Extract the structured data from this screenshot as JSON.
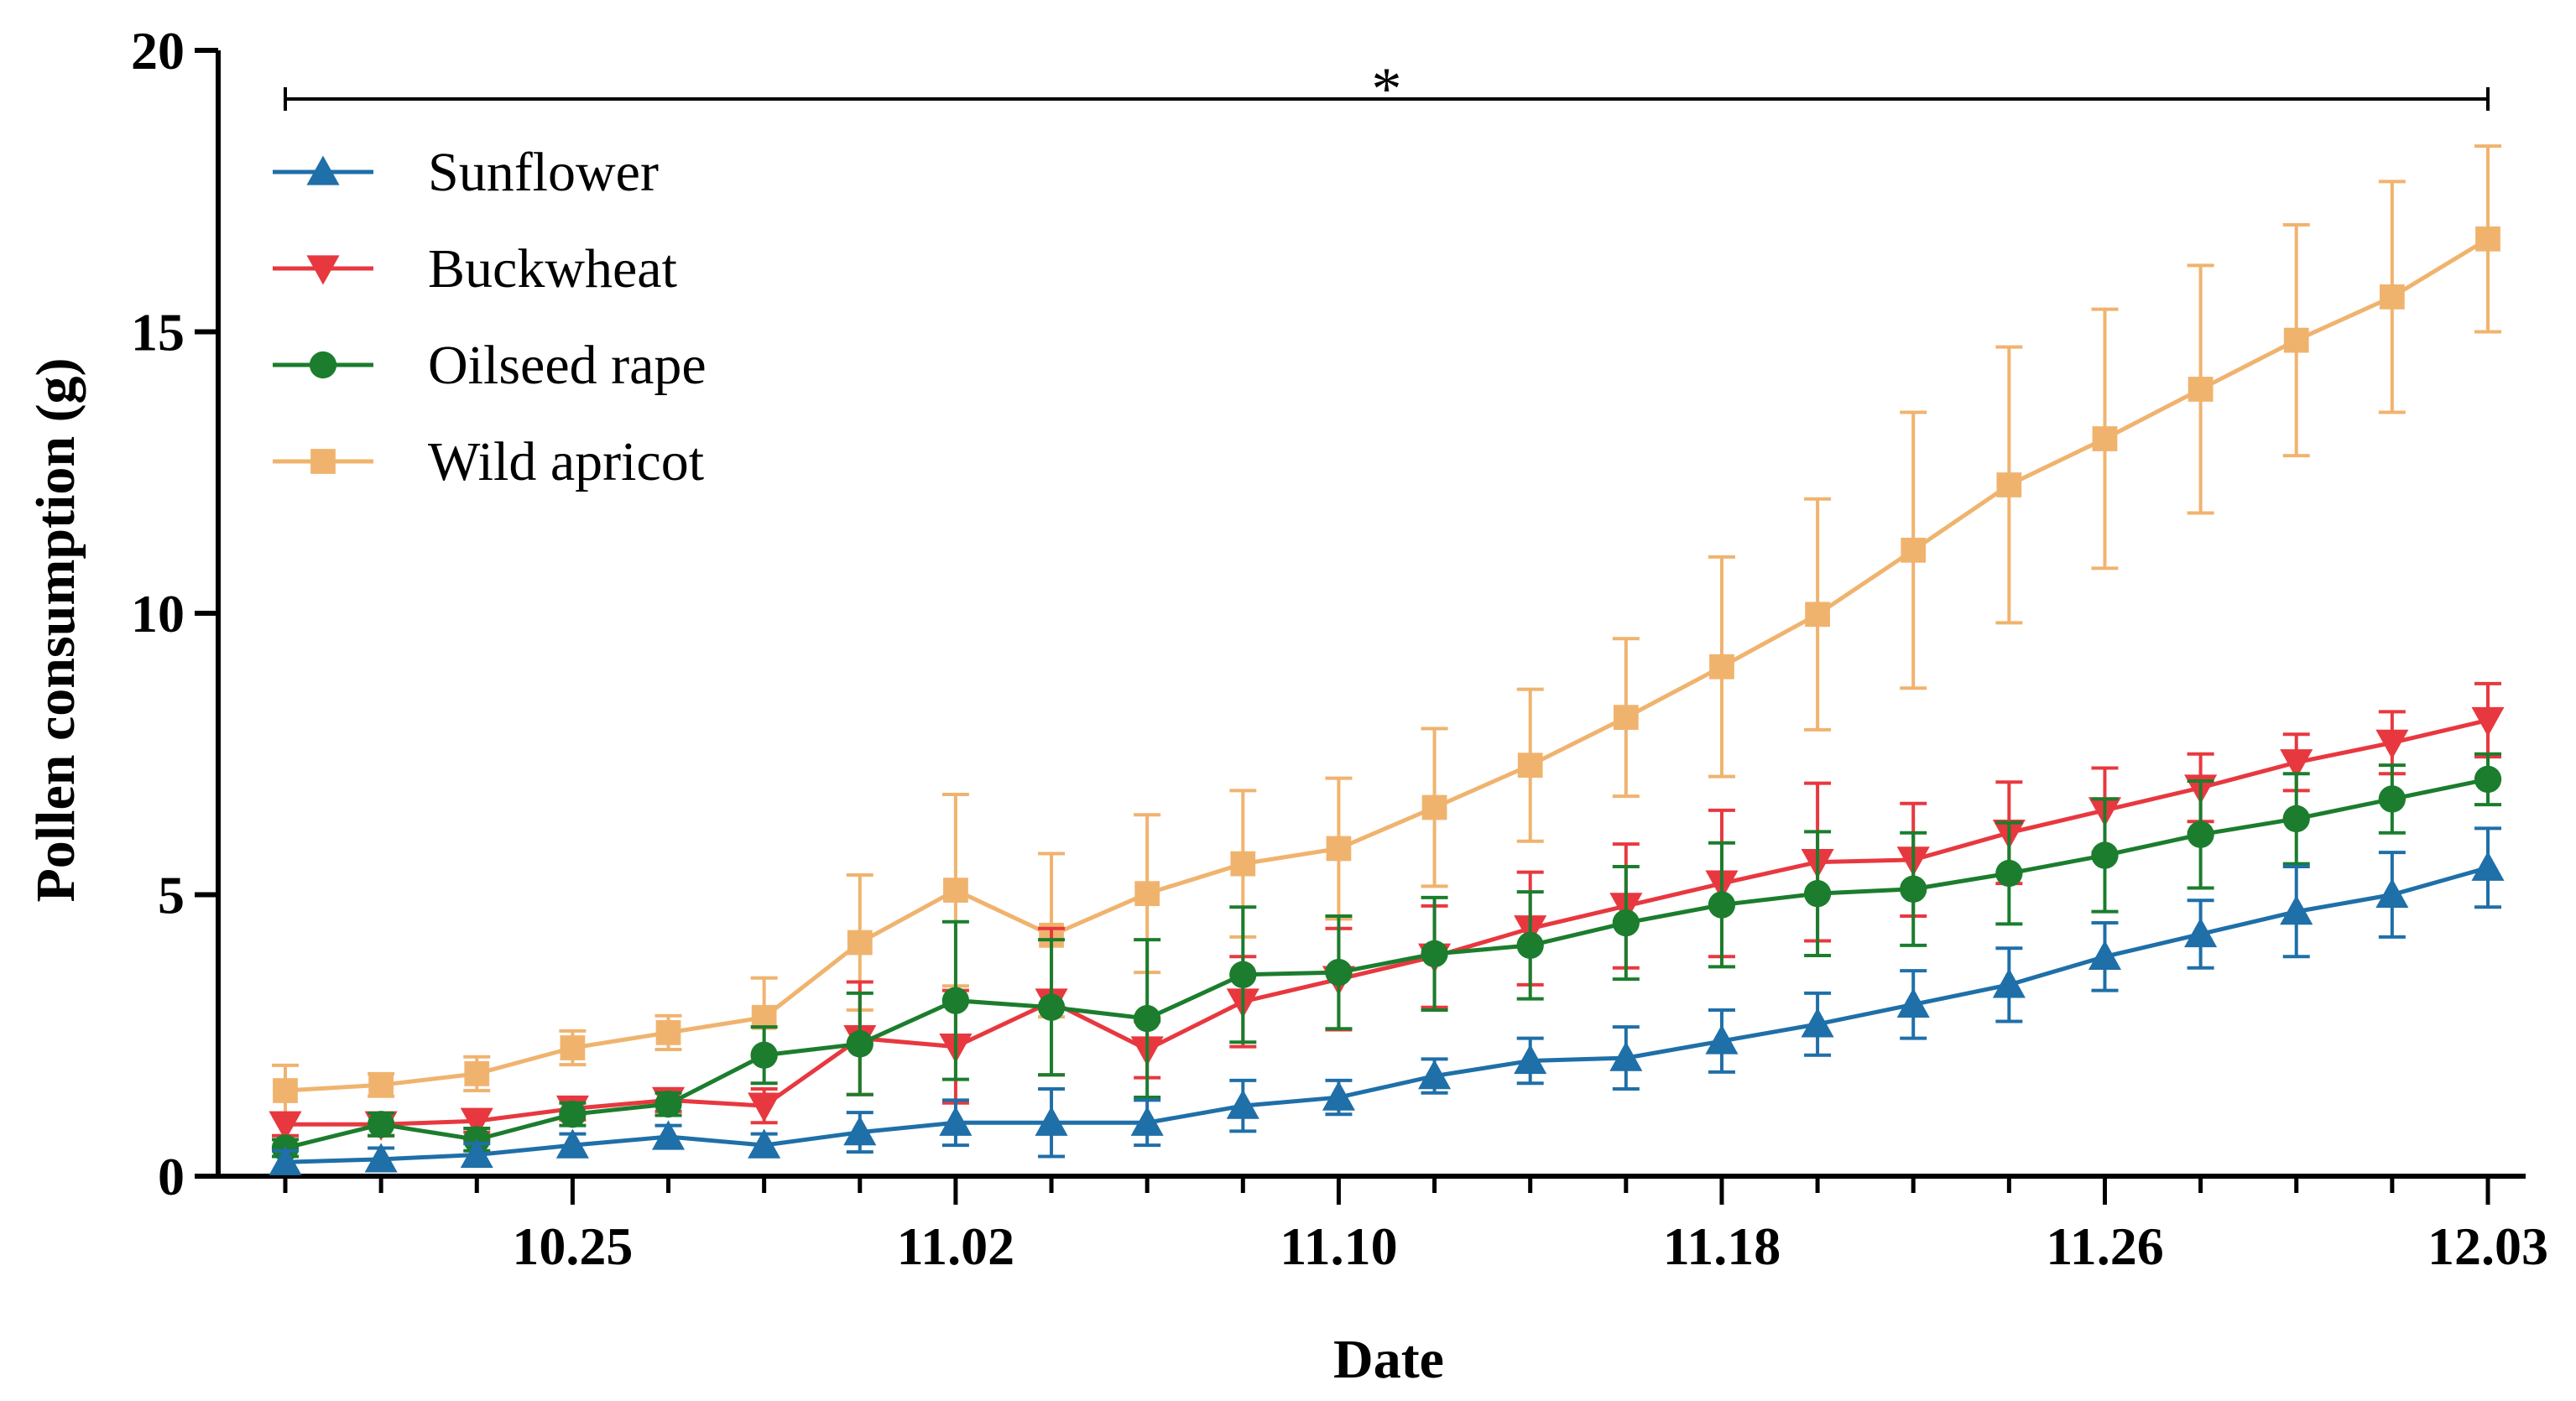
{
  "chart_data": {
    "type": "line",
    "title": "",
    "xlabel": "Date",
    "ylabel": "Pollen consumption (g)",
    "ylim": [
      0,
      20
    ],
    "yticks": [
      "0",
      "5",
      "10",
      "15",
      "20"
    ],
    "x_tick_labels": [
      "10.25",
      "11.02",
      "11.10",
      "11.18",
      "11.26",
      "12.03"
    ],
    "x_tick_indices": [
      3,
      7,
      11,
      15,
      19,
      23
    ],
    "n_points": 24,
    "significance_marker": "*",
    "grid": false,
    "legend_position": "top-left",
    "series": [
      {
        "name": "Sunflower",
        "color": "#1f6fa8",
        "marker": "triangle-up",
        "values": [
          0.25,
          0.3,
          0.38,
          0.55,
          0.7,
          0.55,
          0.78,
          0.95,
          0.95,
          0.95,
          1.25,
          1.4,
          1.78,
          2.05,
          2.1,
          2.4,
          2.7,
          3.05,
          3.4,
          3.9,
          4.3,
          4.7,
          5.0,
          5.48
        ],
        "errors": [
          0.2,
          0.2,
          0.2,
          0.2,
          0.2,
          0.2,
          0.35,
          0.4,
          0.6,
          0.4,
          0.45,
          0.3,
          0.3,
          0.4,
          0.55,
          0.55,
          0.55,
          0.6,
          0.65,
          0.6,
          0.6,
          0.8,
          0.75,
          0.7
        ]
      },
      {
        "name": "Buckwheat",
        "color": "#e8383f",
        "marker": "triangle-down",
        "values": [
          0.92,
          0.92,
          0.98,
          1.2,
          1.35,
          1.25,
          2.45,
          2.3,
          3.1,
          2.25,
          3.1,
          3.5,
          3.9,
          4.4,
          4.8,
          5.2,
          5.58,
          5.62,
          6.1,
          6.5,
          6.9,
          7.35,
          7.7,
          8.1
        ],
        "errors": [
          0.2,
          0.2,
          0.2,
          0.2,
          0.2,
          0.3,
          1.0,
          1.0,
          1.3,
          0.5,
          0.8,
          0.9,
          0.9,
          1.0,
          1.1,
          1.3,
          1.4,
          1.0,
          0.9,
          0.75,
          0.6,
          0.5,
          0.55,
          0.65
        ]
      },
      {
        "name": "Oilseed rape",
        "color": "#1b7d2d",
        "marker": "circle",
        "values": [
          0.5,
          0.92,
          0.65,
          1.1,
          1.28,
          2.15,
          2.35,
          3.12,
          3.0,
          2.8,
          3.58,
          3.62,
          3.95,
          4.1,
          4.5,
          4.82,
          5.02,
          5.1,
          5.38,
          5.7,
          6.07,
          6.35,
          6.7,
          7.05
        ],
        "errors": [
          0.15,
          0.2,
          0.2,
          0.2,
          0.2,
          0.5,
          0.9,
          1.4,
          1.2,
          1.4,
          1.2,
          1.0,
          1.0,
          0.95,
          1.0,
          1.1,
          1.1,
          1.0,
          0.9,
          1.0,
          0.95,
          0.8,
          0.6,
          0.45
        ]
      },
      {
        "name": "Wild apricot",
        "color": "#f0b36e",
        "marker": "square",
        "values": [
          1.52,
          1.62,
          1.82,
          2.28,
          2.55,
          2.82,
          4.15,
          5.08,
          4.28,
          5.02,
          5.55,
          5.82,
          6.55,
          7.3,
          8.15,
          9.05,
          9.98,
          11.12,
          12.28,
          13.1,
          13.98,
          14.85,
          15.62,
          16.65
        ],
        "errors": [
          0.45,
          0.2,
          0.3,
          0.3,
          0.3,
          0.7,
          1.2,
          1.7,
          1.45,
          1.4,
          1.3,
          1.25,
          1.4,
          1.35,
          1.4,
          1.95,
          2.05,
          2.45,
          2.45,
          2.3,
          2.2,
          2.05,
          2.05,
          1.65
        ]
      }
    ]
  }
}
